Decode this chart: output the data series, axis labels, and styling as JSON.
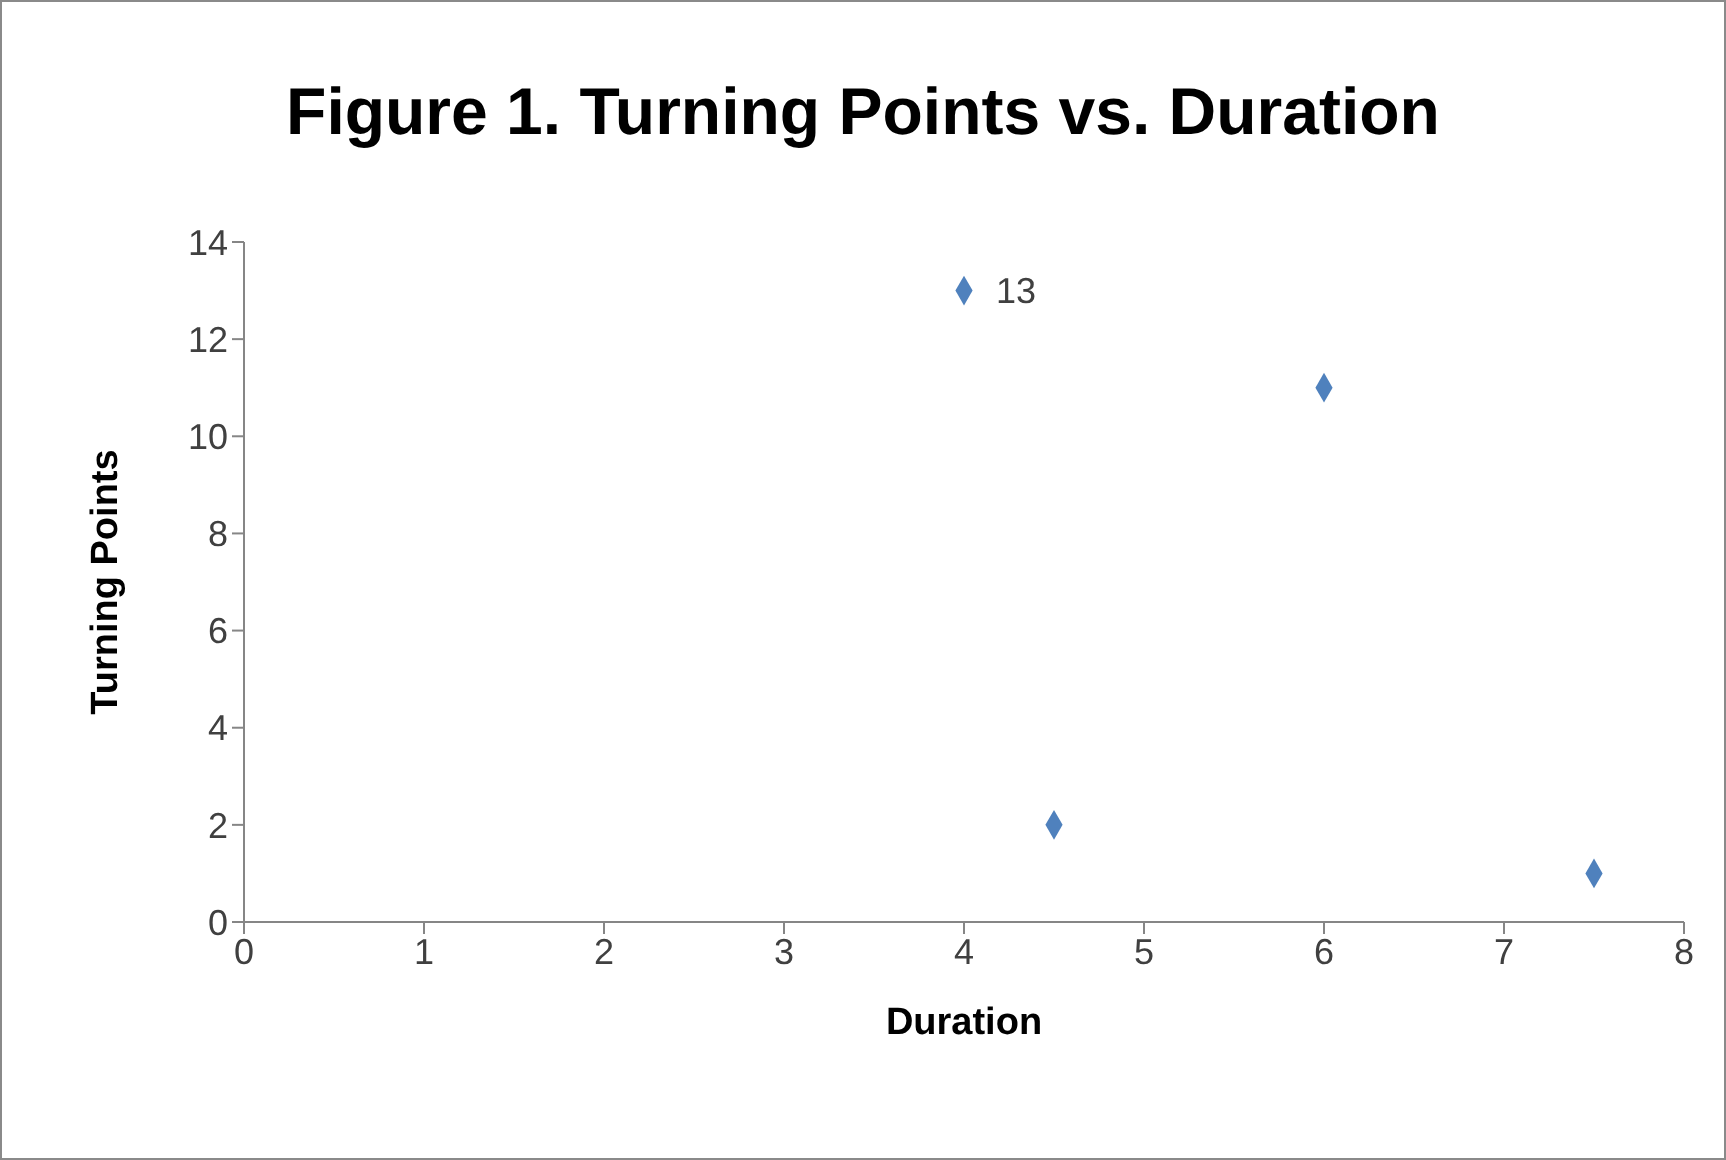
{
  "chart_data": {
    "type": "scatter",
    "title": "Figure 1. Turning Points vs. Duration",
    "xlabel": "Duration",
    "ylabel": "Turning Points",
    "x": [
      4,
      4.5,
      6,
      7.5
    ],
    "series": [
      {
        "color": "#4f81bd",
        "values": [
          13,
          2,
          11,
          1
        ],
        "value_labels": [
          "13",
          null,
          null,
          null
        ]
      }
    ],
    "xlim": [
      0,
      8
    ],
    "xticks": [
      0,
      1,
      2,
      3,
      4,
      5,
      6,
      7,
      8
    ],
    "ylim": [
      0,
      14
    ],
    "yticks": [
      0,
      2,
      4,
      6,
      8,
      10,
      12,
      14
    ],
    "marker": "diamond"
  }
}
